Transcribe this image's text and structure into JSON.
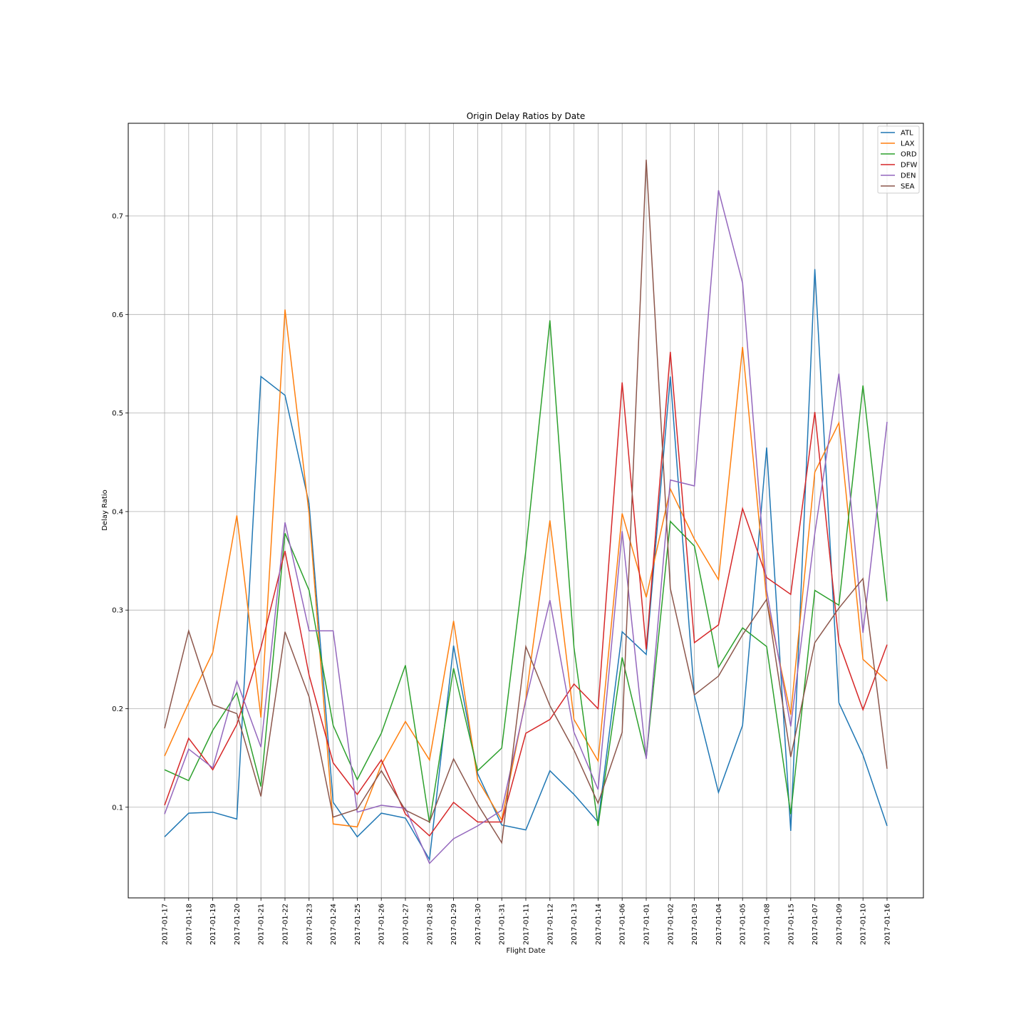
{
  "chart_data": {
    "type": "line",
    "title": "Origin Delay Ratios by Date",
    "xlabel": "Flight Date",
    "ylabel": "Delay Ratio",
    "ylim": [
      0.008,
      0.794
    ],
    "yticks": [
      0.1,
      0.2,
      0.3,
      0.4,
      0.5,
      0.6,
      0.7
    ],
    "grid": true,
    "legend_position": "top-right",
    "categories": [
      "2017-01-17",
      "2017-01-18",
      "2017-01-19",
      "2017-01-20",
      "2017-01-21",
      "2017-01-22",
      "2017-01-23",
      "2017-01-24",
      "2017-01-25",
      "2017-01-26",
      "2017-01-27",
      "2017-01-28",
      "2017-01-29",
      "2017-01-30",
      "2017-01-31",
      "2017-01-11",
      "2017-01-12",
      "2017-01-13",
      "2017-01-14",
      "2017-01-06",
      "2017-01-01",
      "2017-01-02",
      "2017-01-03",
      "2017-01-04",
      "2017-01-05",
      "2017-01-08",
      "2017-01-15",
      "2017-01-07",
      "2017-01-09",
      "2017-01-10",
      "2017-01-16"
    ],
    "series": [
      {
        "name": "ATL",
        "color": "#1f77b4",
        "values": [
          0.07,
          0.094,
          0.095,
          0.088,
          0.537,
          0.518,
          0.408,
          0.105,
          0.07,
          0.094,
          0.089,
          0.047,
          0.264,
          0.134,
          0.082,
          0.077,
          0.137,
          0.113,
          0.085,
          0.278,
          0.255,
          0.537,
          0.213,
          0.115,
          0.183,
          0.465,
          0.076,
          0.646,
          0.206,
          0.153,
          0.081
        ]
      },
      {
        "name": "LAX",
        "color": "#ff7f0e",
        "values": [
          0.152,
          0.206,
          0.257,
          0.396,
          0.191,
          0.605,
          0.398,
          0.083,
          0.08,
          0.143,
          0.187,
          0.148,
          0.289,
          0.128,
          0.087,
          0.21,
          0.391,
          0.189,
          0.147,
          0.398,
          0.313,
          0.423,
          0.372,
          0.331,
          0.567,
          0.31,
          0.194,
          0.44,
          0.49,
          0.25,
          0.228
        ]
      },
      {
        "name": "ORD",
        "color": "#2ca02c",
        "values": [
          0.138,
          0.127,
          0.178,
          0.216,
          0.121,
          0.378,
          0.32,
          0.183,
          0.128,
          0.175,
          0.244,
          0.084,
          0.241,
          0.137,
          0.16,
          0.36,
          0.594,
          0.262,
          0.081,
          0.252,
          0.15,
          0.39,
          0.365,
          0.242,
          0.282,
          0.263,
          0.093,
          0.32,
          0.305,
          0.528,
          0.309
        ]
      },
      {
        "name": "DFW",
        "color": "#d62728",
        "values": [
          0.102,
          0.17,
          0.138,
          0.184,
          0.262,
          0.36,
          0.234,
          0.145,
          0.113,
          0.148,
          0.093,
          0.071,
          0.105,
          0.085,
          0.085,
          0.175,
          0.189,
          0.225,
          0.2,
          0.531,
          0.26,
          0.562,
          0.267,
          0.285,
          0.403,
          0.333,
          0.316,
          0.501,
          0.267,
          0.199,
          0.265
        ]
      },
      {
        "name": "DEN",
        "color": "#9467bd",
        "values": [
          0.093,
          0.159,
          0.14,
          0.228,
          0.161,
          0.389,
          0.279,
          0.279,
          0.095,
          0.102,
          0.099,
          0.043,
          0.068,
          0.081,
          0.097,
          0.208,
          0.31,
          0.176,
          0.118,
          0.38,
          0.149,
          0.432,
          0.426,
          0.726,
          0.632,
          0.32,
          0.182,
          0.378,
          0.54,
          0.277,
          0.491
        ]
      },
      {
        "name": "SEA",
        "color": "#8c564b",
        "values": [
          0.18,
          0.279,
          0.204,
          0.195,
          0.111,
          0.278,
          0.212,
          0.09,
          0.098,
          0.137,
          0.097,
          0.085,
          0.149,
          0.103,
          0.064,
          0.263,
          0.203,
          0.158,
          0.104,
          0.176,
          0.757,
          0.322,
          0.214,
          0.233,
          0.275,
          0.311,
          0.151,
          0.267,
          0.302,
          0.332,
          0.139
        ]
      }
    ]
  }
}
